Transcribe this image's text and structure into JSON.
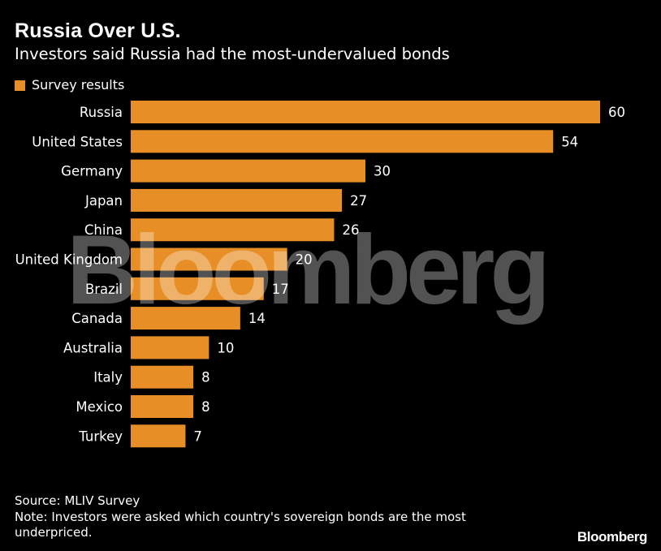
{
  "title": "Russia Over U.S.",
  "subtitle": "Investors said Russia had the most-undervalued bonds",
  "legend": {
    "label": "Survey results",
    "color": "#e88e26"
  },
  "watermark": "Bloomberg",
  "chart_data": {
    "type": "bar",
    "orientation": "horizontal",
    "categories": [
      "Russia",
      "United States",
      "Germany",
      "Japan",
      "China",
      "United Kingdom",
      "Brazil",
      "Canada",
      "Australia",
      "Italy",
      "Mexico",
      "Turkey"
    ],
    "series": [
      {
        "name": "Survey results",
        "values": [
          60,
          54,
          30,
          27,
          26,
          20,
          17,
          14,
          10,
          8,
          8,
          7
        ],
        "color": "#e88e26"
      }
    ],
    "xlim": [
      0,
      60
    ],
    "grid": false,
    "data_labels": true,
    "legend_position": "top-left"
  },
  "footer": {
    "source": "Source: MLIV Survey",
    "note_line1": "Note: Investors were asked which country's sovereign bonds are the most",
    "note_line2": "underpriced.",
    "brand": "Bloomberg"
  }
}
